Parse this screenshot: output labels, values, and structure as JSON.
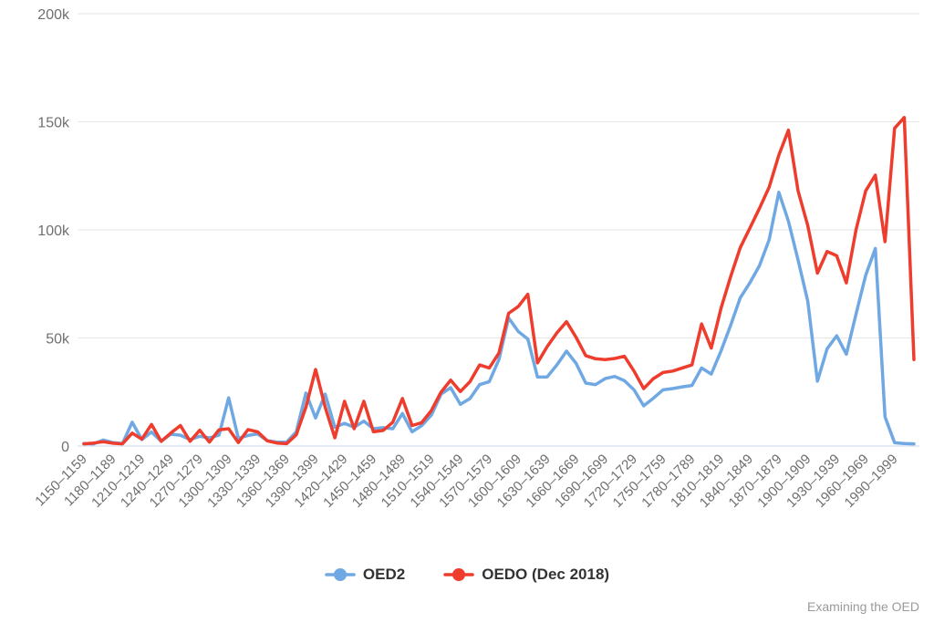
{
  "chart_data": {
    "type": "line",
    "title": "",
    "xlabel": "",
    "ylabel": "",
    "grid": true,
    "legend_position": "bottom",
    "ylim": [
      0,
      200000
    ],
    "y_ticks": [
      {
        "value": 0,
        "label": "0"
      },
      {
        "value": 50000,
        "label": "50k"
      },
      {
        "value": 100000,
        "label": "100k"
      },
      {
        "value": 150000,
        "label": "150k"
      },
      {
        "value": 200000,
        "label": "200k"
      }
    ],
    "tick_every": 3,
    "x_tick_labels": [
      "1150–1159",
      "1180–1189",
      "1210–1219",
      "1240–1249",
      "1270–1279",
      "1300–1309",
      "1330–1339",
      "1360–1369",
      "1390–1399",
      "1420–1429",
      "1450–1459",
      "1480–1489",
      "1510–1519",
      "1540–1549",
      "1570–1579",
      "1600–1609",
      "1630–1639",
      "1660–1669",
      "1690–1699",
      "1720–1729",
      "1750–1759",
      "1780–1789",
      "1810–1819",
      "1840–1849",
      "1870–1879",
      "1900–1909",
      "1930–1939",
      "1960–1969",
      "1990–1999"
    ],
    "decades": [
      1150,
      1160,
      1170,
      1180,
      1190,
      1200,
      1210,
      1220,
      1230,
      1240,
      1250,
      1260,
      1270,
      1280,
      1290,
      1300,
      1310,
      1320,
      1330,
      1340,
      1350,
      1360,
      1370,
      1380,
      1390,
      1400,
      1410,
      1420,
      1430,
      1440,
      1450,
      1460,
      1470,
      1480,
      1490,
      1500,
      1510,
      1520,
      1530,
      1540,
      1550,
      1560,
      1570,
      1580,
      1590,
      1600,
      1610,
      1620,
      1630,
      1640,
      1650,
      1660,
      1670,
      1680,
      1690,
      1700,
      1710,
      1720,
      1730,
      1740,
      1750,
      1760,
      1770,
      1780,
      1790,
      1800,
      1810,
      1820,
      1830,
      1840,
      1850,
      1860,
      1870,
      1880,
      1890,
      1900,
      1910,
      1920,
      1930,
      1940,
      1950,
      1960,
      1970,
      1980,
      1990,
      2000,
      2010
    ],
    "series": [
      {
        "name": "OED2",
        "color": "#6FA8E2",
        "values": [
          1200,
          1000,
          2800,
          1600,
          1200,
          11000,
          3000,
          6500,
          2200,
          5500,
          5000,
          3000,
          4500,
          3800,
          5000,
          22300,
          3600,
          4900,
          5600,
          2500,
          1800,
          1800,
          6600,
          24500,
          13000,
          24000,
          8700,
          10500,
          8700,
          11500,
          8000,
          8500,
          8000,
          15000,
          6600,
          9400,
          14300,
          24000,
          27000,
          19300,
          22000,
          28400,
          29800,
          40000,
          59300,
          53000,
          49500,
          31900,
          32000,
          37500,
          43900,
          38200,
          29100,
          28400,
          31200,
          32200,
          30200,
          26000,
          18600,
          22100,
          26000,
          26600,
          27400,
          28000,
          36100,
          33300,
          43900,
          55800,
          68500,
          75500,
          83500,
          95500,
          117400,
          104000,
          86000,
          67000,
          30000,
          45000,
          51000,
          42500,
          61000,
          79000,
          91400,
          13500,
          1500,
          1200,
          1000
        ]
      },
      {
        "name": "OEDO (Dec 2018)",
        "color": "#EE3C2D",
        "values": [
          1000,
          1400,
          2000,
          1300,
          1000,
          6000,
          3200,
          10000,
          2200,
          6000,
          9500,
          2200,
          7300,
          1800,
          7500,
          8000,
          1600,
          7600,
          6600,
          2400,
          1400,
          1100,
          5200,
          18000,
          35400,
          18000,
          3800,
          20700,
          8000,
          20700,
          6600,
          7200,
          11000,
          22000,
          9500,
          10800,
          16400,
          24900,
          30500,
          25200,
          29800,
          37500,
          36100,
          43000,
          61400,
          64500,
          70200,
          38500,
          46000,
          52300,
          57500,
          50200,
          41800,
          40400,
          40000,
          40500,
          41500,
          34700,
          26600,
          31200,
          34000,
          34700,
          36100,
          37500,
          56500,
          45300,
          63600,
          78300,
          91700,
          100800,
          110000,
          119800,
          134600,
          146100,
          118000,
          102000,
          80000,
          90000,
          88000,
          75500,
          100000,
          118000,
          125300,
          94500,
          147000,
          152000,
          40000
        ]
      }
    ]
  },
  "legend": {
    "items": [
      {
        "label": "OED2"
      },
      {
        "label": "OEDO (Dec 2018)"
      }
    ]
  },
  "footer": {
    "credit": "Examining the OED"
  },
  "colors": {
    "grid": "#e6e6e6",
    "axis_line": "#ccd6eb",
    "y_label": "#707070",
    "x_label": "#6e6e6e",
    "legend_text": "#333333",
    "credit_text": "#9a9a9a",
    "background": "#ffffff"
  }
}
